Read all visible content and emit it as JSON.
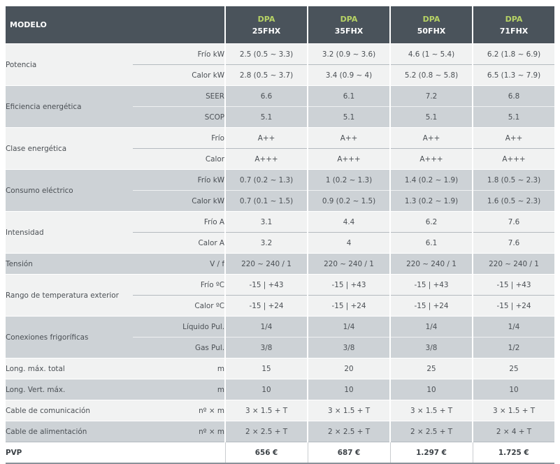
{
  "header": {
    "modelo_label": "MODELO",
    "models": [
      {
        "brand": "DPA",
        "code": "25FHX"
      },
      {
        "brand": "DPA",
        "code": "35FHX"
      },
      {
        "brand": "DPA",
        "code": "50FHX"
      },
      {
        "brand": "DPA",
        "code": "71FHX"
      }
    ]
  },
  "groups": [
    {
      "label": "Potencia",
      "shade": "w",
      "rows": [
        {
          "sub": "Frío kW",
          "values": [
            "2.5 (0.5 ~ 3.3)",
            "3.2 (0.9 ~ 3.6)",
            "4.6 (1 ~ 5.4)",
            "6.2 (1.8 ~ 6.9)"
          ]
        },
        {
          "sub": "Calor kW",
          "values": [
            "2.8 (0.5 ~ 3.7)",
            "3.4 (0.9 ~ 4)",
            "5.2 (0.8 ~ 5.8)",
            "6.5 (1.3 ~ 7.9)"
          ]
        }
      ]
    },
    {
      "label": "Eficiencia energética",
      "shade": "g",
      "rows": [
        {
          "sub": "SEER",
          "values": [
            "6.6",
            "6.1",
            "7.2",
            "6.8"
          ]
        },
        {
          "sub": "SCOP",
          "values": [
            "5.1",
            "5.1",
            "5.1",
            "5.1"
          ]
        }
      ]
    },
    {
      "label": "Clase energética",
      "shade": "w",
      "rows": [
        {
          "sub": "Frío",
          "values": [
            "A++",
            "A++",
            "A++",
            "A++"
          ]
        },
        {
          "sub": "Calor",
          "values": [
            "A+++",
            "A+++",
            "A+++",
            "A+++"
          ]
        }
      ]
    },
    {
      "label": "Consumo eléctrico",
      "shade": "g",
      "rows": [
        {
          "sub": "Frío kW",
          "values": [
            "0.7 (0.2 ~ 1.3)",
            "1 (0.2 ~ 1.3)",
            "1.4 (0.2 ~ 1.9)",
            "1.8 (0.5 ~ 2.3)"
          ]
        },
        {
          "sub": "Calor kW",
          "values": [
            "0.7 (0.1 ~ 1.5)",
            "0.9 (0.2 ~ 1.5)",
            "1.3 (0.2 ~ 1.9)",
            "1.6 (0.5 ~ 2.3)"
          ]
        }
      ]
    },
    {
      "label": "Intensidad",
      "shade": "w",
      "rows": [
        {
          "sub": "Frío A",
          "values": [
            "3.1",
            "4.4",
            "6.2",
            "7.6"
          ]
        },
        {
          "sub": "Calor A",
          "values": [
            "3.2",
            "4",
            "6.1",
            "7.6"
          ]
        }
      ]
    },
    {
      "label": "Tensión",
      "shade": "g",
      "rows": [
        {
          "sub": "V / f",
          "values": [
            "220 ~ 240 / 1",
            "220 ~ 240 / 1",
            "220 ~ 240 / 1",
            "220 ~ 240 / 1"
          ]
        }
      ]
    },
    {
      "label": "Rango de temperatura exterior",
      "shade": "w",
      "rows": [
        {
          "sub": "Frío ºC",
          "values": [
            "-15 | +43",
            "-15 | +43",
            "-15 | +43",
            "-15 | +43"
          ]
        },
        {
          "sub": "Calor ºC",
          "values": [
            "-15 | +24",
            "-15 | +24",
            "-15 | +24",
            "-15 | +24"
          ]
        }
      ]
    },
    {
      "label": "Conexiones frigoríficas",
      "shade": "g",
      "rows": [
        {
          "sub": "Líquido Pul.",
          "values": [
            "1/4",
            "1/4",
            "1/4",
            "1/4"
          ]
        },
        {
          "sub": "Gas Pul.",
          "values": [
            "3/8",
            "3/8",
            "3/8",
            "1/2"
          ]
        }
      ]
    },
    {
      "label": "Long. máx. total",
      "shade": "w",
      "rows": [
        {
          "sub": "m",
          "values": [
            "15",
            "20",
            "25",
            "25"
          ]
        }
      ]
    },
    {
      "label": "Long. Vert. máx.",
      "shade": "g",
      "rows": [
        {
          "sub": "m",
          "values": [
            "10",
            "10",
            "10",
            "10"
          ]
        }
      ]
    },
    {
      "label": "Cable de comunicación",
      "shade": "w",
      "rows": [
        {
          "sub": "nº × m",
          "values": [
            "3 × 1.5 + T",
            "3 × 1.5 + T",
            "3 × 1.5 + T",
            "3 × 1.5 + T"
          ]
        }
      ]
    },
    {
      "label": "Cable de alimentación",
      "shade": "g",
      "rows": [
        {
          "sub": "nº × m",
          "values": [
            "2 × 2.5 + T",
            "2 × 2.5 + T",
            "2 × 2.5 + T",
            "2 × 4 + T"
          ]
        }
      ]
    }
  ],
  "pvp": {
    "label": "PVP",
    "values": [
      "656 €",
      "687 €",
      "1.297 €",
      "1.725 €"
    ]
  }
}
